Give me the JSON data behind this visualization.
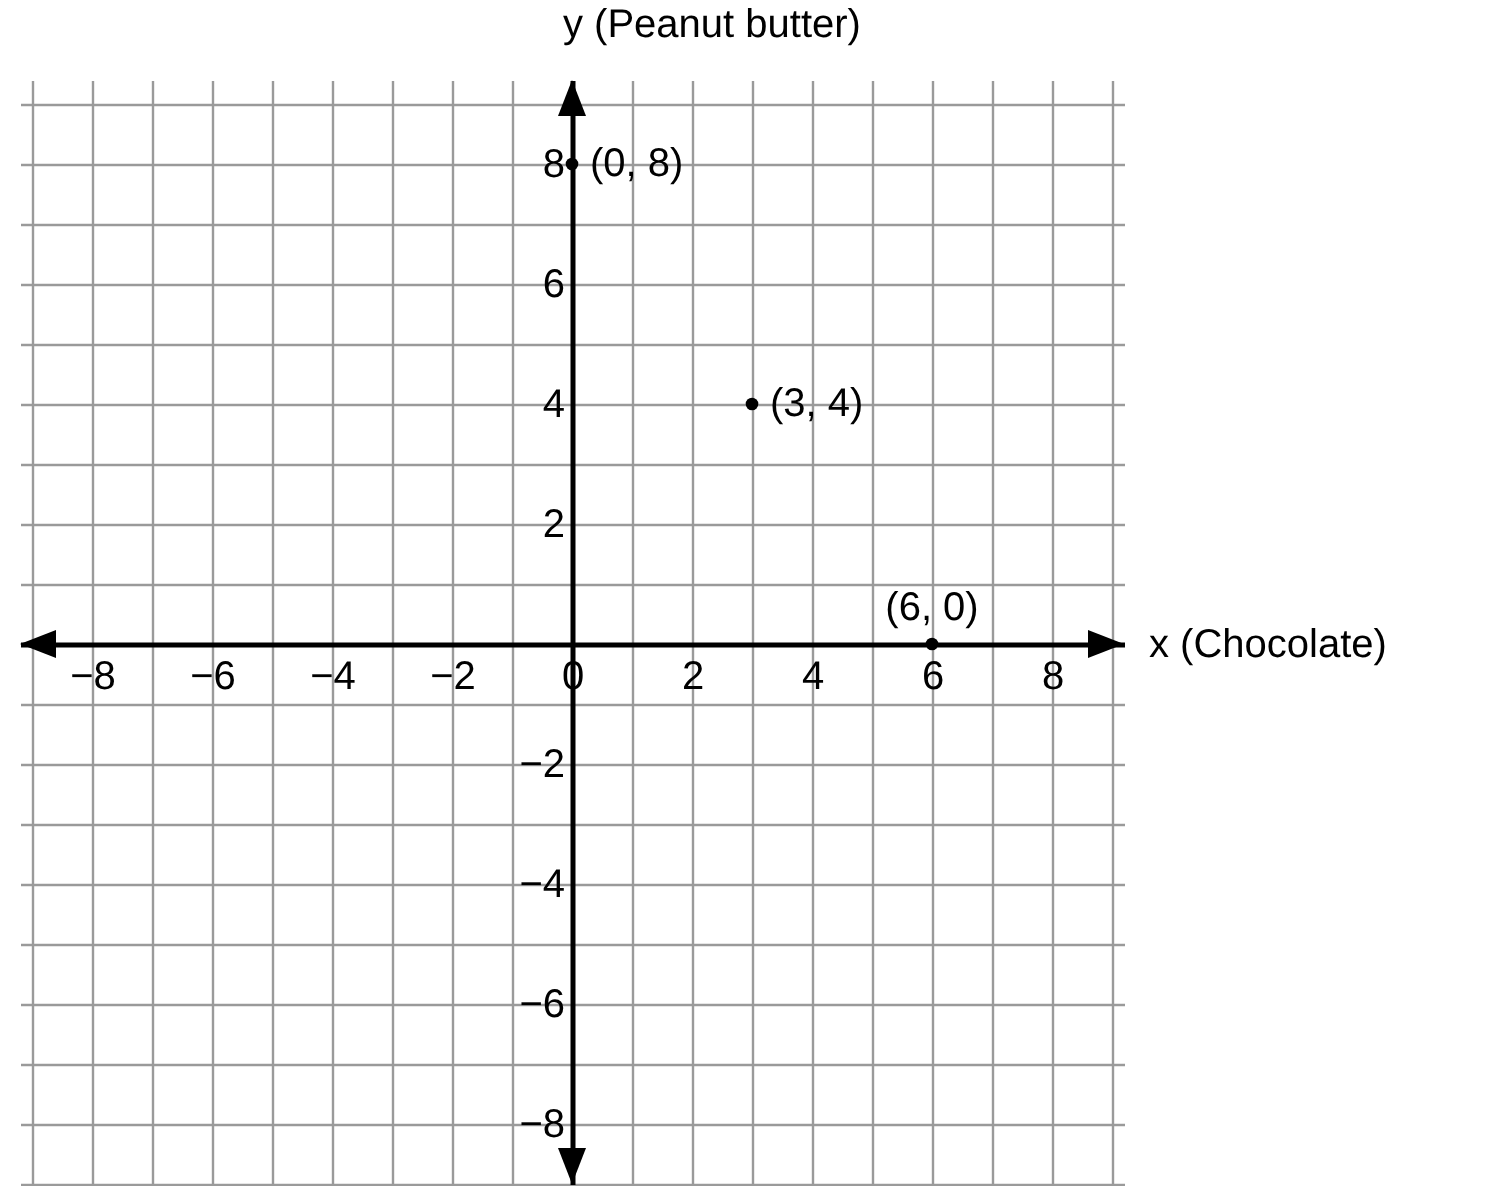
{
  "chart_data": {
    "type": "scatter",
    "xlabel": "x  (Chocolate)",
    "ylabel": "y  (Peanut butter)",
    "x": [
      0,
      3,
      6
    ],
    "series": [
      {
        "color": "#000000",
        "values": [
          8,
          4,
          0
        ]
      }
    ],
    "marker": "circle",
    "xlim": [
      -9.2,
      9.2
    ],
    "ylim": [
      -9,
      9.4
    ],
    "xticks": [
      {
        "value": -9,
        "label": null
      },
      {
        "value": -8,
        "label": "−8"
      },
      {
        "value": -7,
        "label": null
      },
      {
        "value": -6,
        "label": "−6"
      },
      {
        "value": -5,
        "label": null
      },
      {
        "value": -4,
        "label": "−4"
      },
      {
        "value": -3,
        "label": null
      },
      {
        "value": -2,
        "label": "−2"
      },
      {
        "value": -1,
        "label": null
      },
      0,
      {
        "value": 1,
        "label": null
      },
      2,
      {
        "value": 3,
        "label": null
      },
      4,
      {
        "value": 5,
        "label": null
      },
      6,
      {
        "value": 7,
        "label": null
      },
      8,
      {
        "value": 9,
        "label": null
      }
    ],
    "yticks": [
      {
        "value": -9,
        "label": null
      },
      {
        "value": -8,
        "label": "−8"
      },
      {
        "value": -7,
        "label": null
      },
      {
        "value": -6,
        "label": "−6"
      },
      {
        "value": -5,
        "label": null
      },
      {
        "value": -4,
        "label": "−4"
      },
      {
        "value": -3,
        "label": null
      },
      {
        "value": -2,
        "label": "−2"
      },
      {
        "value": -1,
        "label": null
      },
      {
        "value": 0,
        "label": null
      },
      {
        "value": 1,
        "label": null
      },
      2,
      {
        "value": 3,
        "label": null
      },
      4,
      {
        "value": 5,
        "label": null
      },
      6,
      {
        "value": 7,
        "label": null
      },
      8,
      {
        "value": 9,
        "label": null
      }
    ],
    "grid": true,
    "annotations": [
      {
        "text": "(0, 8)",
        "x": 0,
        "y": 8
      },
      {
        "text": "(3, 4)",
        "x": 3,
        "y": 4
      },
      {
        "text": "(6, 0)",
        "x": 6,
        "y": 0
      }
    ]
  }
}
